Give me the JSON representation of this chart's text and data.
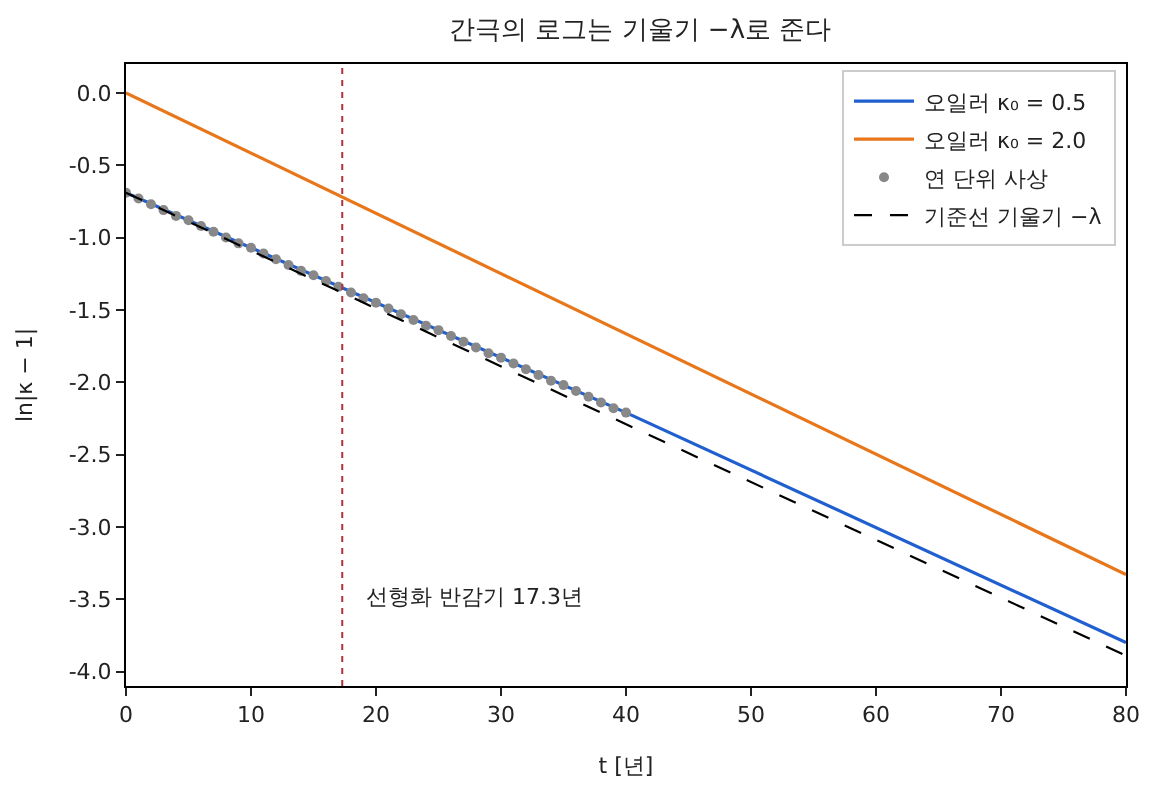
{
  "chart_data": {
    "type": "line",
    "title": "간극의 로그는 기울기 −λ로 준다",
    "xlabel": "t [년]",
    "ylabel": "ln|κ − 1|",
    "xlim": [
      0,
      80
    ],
    "xticks": [
      0,
      10,
      20,
      30,
      40,
      50,
      60,
      70,
      80
    ],
    "ylim": [
      -4.1,
      0.2
    ],
    "yticks": [
      {
        "value": 0,
        "label": "0.0"
      },
      {
        "value": -0.5,
        "label": "-0.5"
      },
      {
        "value": -1,
        "label": "-1.0"
      },
      {
        "value": -1.5,
        "label": "-1.5"
      },
      {
        "value": -2,
        "label": "-2.0"
      },
      {
        "value": -2.5,
        "label": "-2.5"
      },
      {
        "value": -3,
        "label": "-3.0"
      },
      {
        "value": -3.5,
        "label": "-3.5"
      },
      {
        "value": -4,
        "label": "-4.0"
      }
    ],
    "grid": false,
    "legend": "top right",
    "series": [
      {
        "name": "오일러 κ₀ = 0.5",
        "color": "#1f5fcf",
        "x": [
          0,
          40,
          80
        ],
        "values": [
          -0.69,
          -2.21,
          -3.8
        ],
        "line_style": "solid",
        "marker": "none"
      },
      {
        "name": "오일러 κ₀ = 2.0",
        "color": "#e8761a",
        "x": [
          0,
          80
        ],
        "values": [
          0,
          -3.33
        ],
        "line_style": "solid",
        "marker": "none"
      },
      {
        "name": "연 단위 사상",
        "type": "scatter",
        "color": "#888888",
        "marker": "circle",
        "x": [
          0,
          1,
          2,
          3,
          4,
          5,
          6,
          7,
          8,
          9,
          10,
          11,
          12,
          13,
          14,
          15,
          16,
          17,
          18,
          19,
          20,
          21,
          22,
          23,
          24,
          25,
          26,
          27,
          28,
          29,
          30,
          31,
          32,
          33,
          34,
          35,
          36,
          37,
          38,
          39,
          40
        ],
        "values": [
          -0.69,
          -0.73,
          -0.77,
          -0.81,
          -0.85,
          -0.88,
          -0.92,
          -0.96,
          -1.0,
          -1.04,
          -1.07,
          -1.11,
          -1.15,
          -1.19,
          -1.23,
          -1.26,
          -1.3,
          -1.34,
          -1.38,
          -1.42,
          -1.45,
          -1.49,
          -1.53,
          -1.57,
          -1.61,
          -1.64,
          -1.68,
          -1.72,
          -1.76,
          -1.8,
          -1.83,
          -1.87,
          -1.91,
          -1.95,
          -1.99,
          -2.02,
          -2.06,
          -2.1,
          -2.14,
          -2.18,
          -2.21
        ]
      },
      {
        "name": "기준선 기울기 −λ",
        "color": "#000000",
        "x": [
          0,
          80
        ],
        "values": [
          -0.69,
          -3.89
        ],
        "line_style": "dashed",
        "marker": "none"
      }
    ],
    "ref_lines": [
      {
        "axis": "x",
        "value": 17.3,
        "color": "#b0303c",
        "line_style": "dotted"
      }
    ],
    "annotations": [
      "선형화 반감기 17.3년"
    ]
  }
}
